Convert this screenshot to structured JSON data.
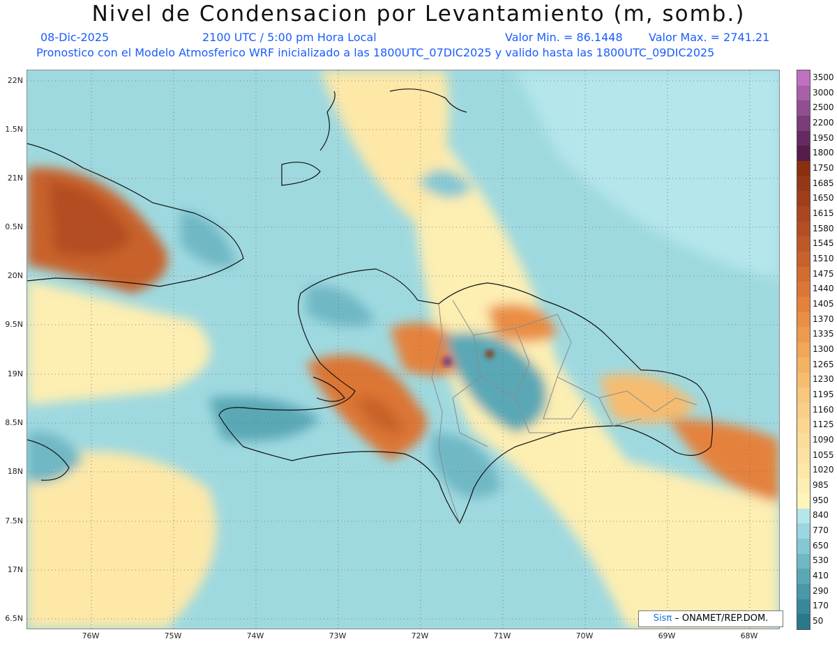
{
  "header": {
    "title": "Nivel de Condensacion por Levantamiento (m, somb.)",
    "date": "08-Dic-2025",
    "time": "2100 UTC / 5:00 pm Hora Local",
    "min_label": "Valor Min. = 86.1448",
    "max_label": "Valor Max. = 2741.21",
    "forecast_line": "Pronostico con el Modelo Atmosferico WRF inicializado a las 1800UTC_07DIC2025 y valido hasta las  1800UTC_09DIC2025"
  },
  "axes": {
    "lat_labels": [
      "22N",
      "1.5N",
      "21N",
      "0.5N",
      "20N",
      "9.5N",
      "19N",
      "8.5N",
      "18N",
      "7.5N",
      "17N",
      "6.5N"
    ],
    "lon_labels": [
      "76W",
      "75W",
      "74W",
      "73W",
      "72W",
      "71W",
      "70W",
      "69W",
      "68W"
    ]
  },
  "colorbar": {
    "labels": [
      "3500",
      "3000",
      "2500",
      "2200",
      "1950",
      "1800",
      "1750",
      "1685",
      "1650",
      "1615",
      "1580",
      "1545",
      "1510",
      "1475",
      "1440",
      "1405",
      "1370",
      "1335",
      "1300",
      "1265",
      "1230",
      "1195",
      "1160",
      "1125",
      "1090",
      "1055",
      "1020",
      "985",
      "950",
      "840",
      "770",
      "650",
      "530",
      "410",
      "290",
      "170",
      "50"
    ],
    "colors": [
      "#c070c0",
      "#a860a8",
      "#905090",
      "#7a3c7a",
      "#652a62",
      "#561c4c",
      "#8a3010",
      "#963818",
      "#a03e1c",
      "#aa4620",
      "#b44e24",
      "#be5828",
      "#c8622c",
      "#d26c30",
      "#dc7636",
      "#e4823c",
      "#ea8e44",
      "#ee9a4e",
      "#f2a658",
      "#f4b264",
      "#f6bc70",
      "#f8c67c",
      "#f9ce86",
      "#fad690",
      "#fbdc98",
      "#fce2a0",
      "#fde8a8",
      "#fdeeb2",
      "#fef4bc",
      "#b4e6ec",
      "#9cd6e0",
      "#86c8d2",
      "#70b8c4",
      "#5aa8b6",
      "#4898a8",
      "#38889a",
      "#2a788c"
    ]
  },
  "credit": {
    "sis": "Sisπ",
    "text": " – ONAMET/REP.DOM."
  }
}
